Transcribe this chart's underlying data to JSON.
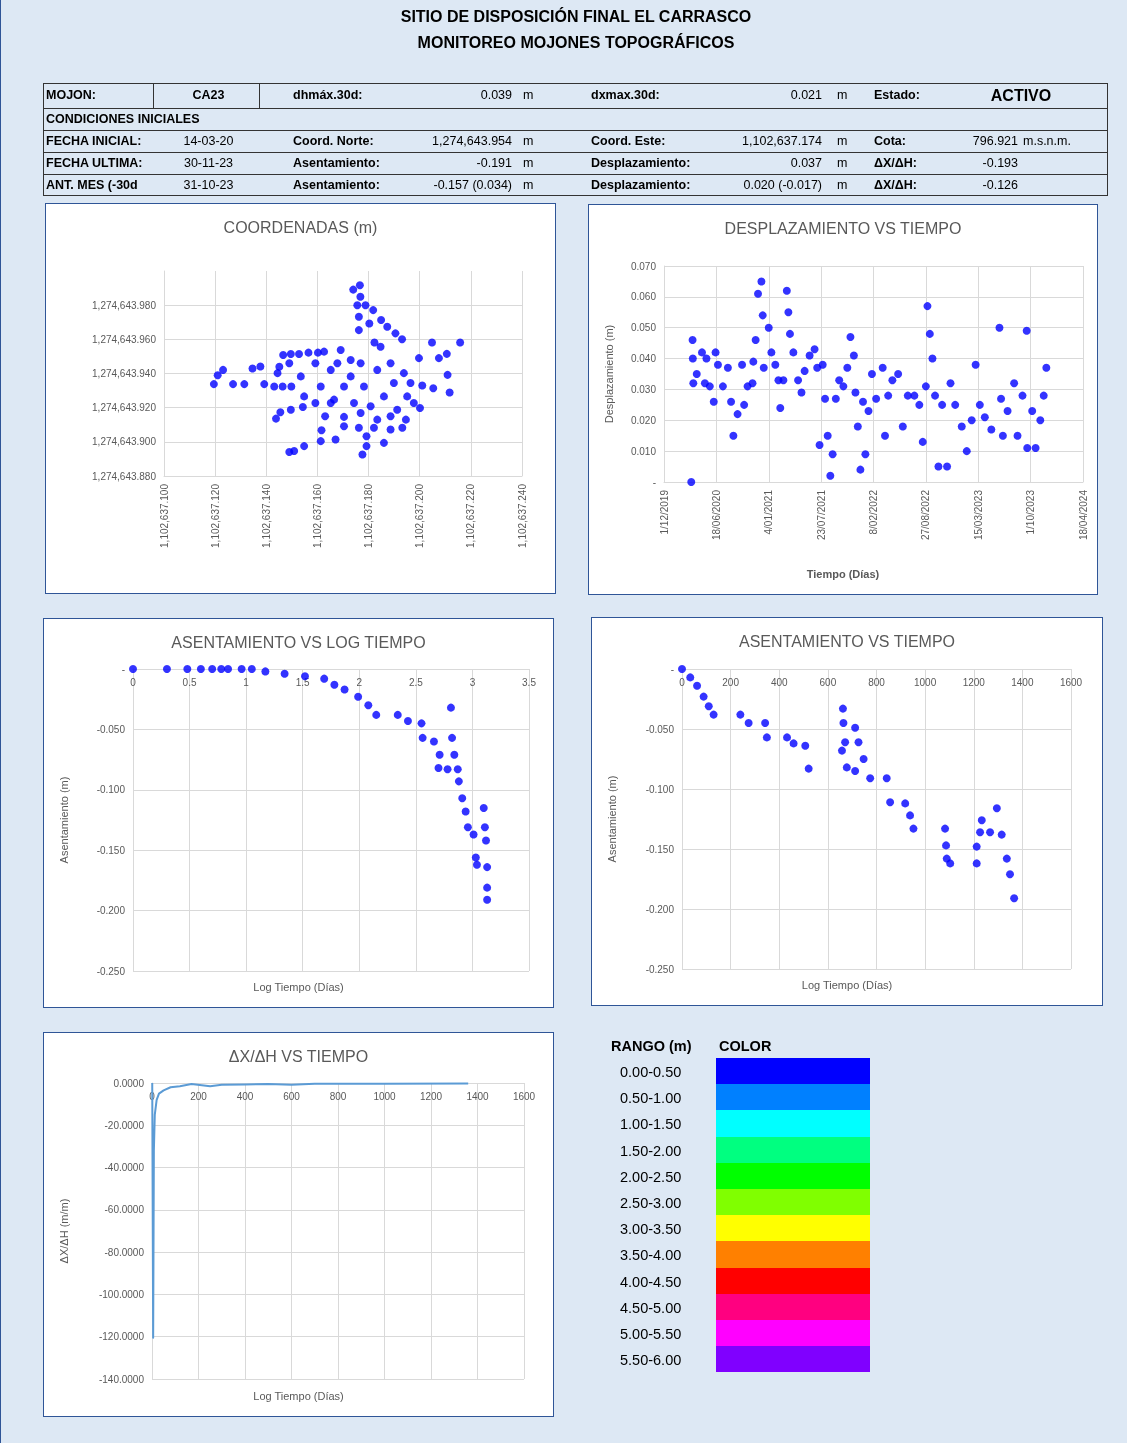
{
  "chart_data": [
    {
      "type": "other",
      "title": "SITIO DE DISPOSICIÓN FINAL EL CARRASCO",
      "subtitle": "MONITOREO MOJONES TOPOGRÁFICOS",
      "annotations": [
        "MOJON:",
        "CA23",
        "dhmáx.30d:",
        "0.039",
        "m",
        "dxmax.30d:",
        "0.021",
        "m",
        "Estado:",
        "ACTIVO",
        "CONDICIONES INICIALES",
        "FECHA INICIAL:",
        "14-03-20",
        "Coord. Norte:",
        "1,274,643.954",
        "m",
        "Coord. Este:",
        "1,102,637.174",
        "m",
        "Cota:",
        "796.921",
        "m.s.n.m.",
        "FECHA ULTIMA:",
        "30-11-23",
        "Asentamiento:",
        "-0.191",
        "m",
        "Desplazamiento:",
        "0.037",
        "m",
        "ΔX/ΔH:",
        "-0.193",
        "ANT. MES (-30d",
        "31-10-23",
        "Asentamiento:",
        "-0.157 (0.034)",
        "m",
        "Desplazamiento:",
        "0.020 (-0.017)",
        "m",
        "ΔX/ΔH:",
        "-0.126"
      ]
    },
    {
      "type": "scatter",
      "title": "COORDENADAS (m)",
      "color": "#0000ff",
      "marker": "circle",
      "grid": true,
      "xlim": [
        1102637.1,
        1102637.24
      ],
      "xticks": [
        {
          "value": 1102637.1,
          "label": "1,102,637.100"
        },
        {
          "value": 1102637.12,
          "label": "1,102,637.120"
        },
        {
          "value": 1102637.14,
          "label": "1,102,637.140"
        },
        {
          "value": 1102637.16,
          "label": "1,102,637.160"
        },
        {
          "value": 1102637.18,
          "label": "1,102,637.180"
        },
        {
          "value": 1102637.2,
          "label": "1,102,637.200"
        },
        {
          "value": 1102637.22,
          "label": "1,102,637.220"
        },
        {
          "value": 1102637.24,
          "label": "1,102,637.240"
        }
      ],
      "ylim": [
        1274643.88,
        1274644.0
      ],
      "yticks": [
        {
          "value": 1274643.88,
          "label": "1,274,643.880"
        },
        {
          "value": 1274643.9,
          "label": "1,274,643.900"
        },
        {
          "value": 1274643.92,
          "label": "1,274,643.920"
        },
        {
          "value": 1274643.94,
          "label": "1,274,643.940"
        },
        {
          "value": 1274643.96,
          "label": "1,274,643.960"
        },
        {
          "value": 1274643.98,
          "label": "1,274,643.980"
        }
      ],
      "x": [
        1102637.1195,
        1102637.121,
        1102637.1231,
        1102637.127,
        1102637.1314,
        1102637.1346,
        1102637.1377,
        1102637.1392,
        1102637.1431,
        1102637.1464,
        1102637.1438,
        1102637.1455,
        1102637.1496,
        1102637.1543,
        1102637.149,
        1102637.1509,
        1102637.1548,
        1102637.1613,
        1102637.1616,
        1102637.1671,
        1102637.163,
        1102637.1704,
        1102637.1704,
        1102637.1762,
        1102637.1776,
        1102637.1792,
        1102637.1792,
        1102637.186,
        1102637.1821,
        1102637.1886,
        1102637.1932,
        1102637.1766,
        1102637.174,
        1102637.1768,
        1102637.1756,
        1102637.1788,
        1102637.1818,
        1102637.1762,
        1102637.1803,
        1102637.1762,
        1102637.1849,
        1102637.1873,
        1102637.1905,
        1102637.1931,
        1102637.1823,
        1102637.2158,
        1102637.2048,
        1102637.2106,
        1102637.2075,
        1102637.1997,
        1102637.2109,
        1102637.2117,
        1102637.2053,
        1102637.201,
        1102637.2001,
        1102637.1946,
        1102637.1466,
        1102637.1496,
        1102637.1528,
        1102637.1565,
        1102637.1602,
        1102637.1626,
        1102637.1451,
        1102637.149,
        1102637.1444,
        1102637.1498,
        1102637.1535,
        1102637.1592,
        1102637.1592,
        1102637.1613,
        1102637.1652,
        1102637.1652,
        1102637.1678,
        1102637.1691,
        1102637.1704,
        1102637.173,
        1102637.173,
        1102637.1743,
        1102637.1769,
        1102637.1782,
        1102637.1808,
        1102637.1834,
        1102637.1847,
        1102637.186,
        1102637.1886,
        1102637.1899,
        1102637.1912,
        1102637.1938,
        1102637.1951,
        1102637.1964,
        1102637.1977,
        1102637.1886,
        1102637.1834,
        1102637.1769,
        1102637.1665,
        1102637.1548
      ],
      "values": [
        1274643.9338,
        1274643.939,
        1274643.9421,
        1274643.9338,
        1274643.9338,
        1274643.9429,
        1274643.9441,
        1274643.9338,
        1274643.9324,
        1274643.9324,
        1274643.9136,
        1274643.9173,
        1274643.9188,
        1274643.9204,
        1274643.894,
        1274643.8946,
        1274643.8975,
        1274643.9004,
        1274643.9068,
        1274643.9014,
        1274643.915,
        1274643.9091,
        1274643.9146,
        1274643.9082,
        1274643.8926,
        1274643.8975,
        1274643.9033,
        1274643.8994,
        1274643.9082,
        1274643.9072,
        1274643.9082,
        1274643.9917,
        1274643.9891,
        1274643.9849,
        1274643.98,
        1274643.98,
        1274643.9771,
        1274643.9732,
        1274643.9693,
        1274643.9654,
        1274643.9713,
        1274643.9674,
        1274643.9635,
        1274643.96,
        1274643.9581,
        1274643.9581,
        1274643.9581,
        1274643.9515,
        1274643.949,
        1274643.949,
        1274643.9392,
        1274643.9289,
        1274643.9314,
        1274643.933,
        1274643.9198,
        1274643.913,
        1274643.9508,
        1274643.9514,
        1274643.9514,
        1274643.9522,
        1274643.9522,
        1274643.9528,
        1274643.944,
        1274643.946,
        1274643.9402,
        1274643.9324,
        1274643.9383,
        1274643.946,
        1274643.9227,
        1274643.9324,
        1274643.9421,
        1274643.9227,
        1274643.946,
        1274643.9538,
        1274643.9324,
        1274643.9479,
        1274643.9383,
        1274643.9227,
        1274643.946,
        1274643.9324,
        1274643.9208,
        1274643.9421,
        1274643.9557,
        1274643.9266,
        1274643.946,
        1274643.9344,
        1274643.9188,
        1274643.9402,
        1274643.9266,
        1274643.9344,
        1274643.9227,
        1274643.915,
        1274643.913,
        1274643.9169,
        1274643.9247,
        1274643.9266
      ]
    },
    {
      "type": "scatter",
      "title": "DESPLAZAMIENTO VS TIEMPO",
      "xlabel": "Tiempo (Días)",
      "ylabel": "Desplazamiento (m)",
      "color": "#0000ff",
      "marker": "circle",
      "grid": true,
      "xlim": [
        "2019-12-01",
        "2024-04-18"
      ],
      "xticks": [
        {
          "value": "2019-12-01",
          "label": "1/12/2019"
        },
        {
          "value": "2020-06-18",
          "label": "18/06/2020"
        },
        {
          "value": "2021-01-04",
          "label": "4/01/2021"
        },
        {
          "value": "2021-07-23",
          "label": "23/07/2021"
        },
        {
          "value": "2022-02-08",
          "label": "8/02/2022"
        },
        {
          "value": "2022-08-27",
          "label": "27/08/2022"
        },
        {
          "value": "2023-03-15",
          "label": "15/03/2023"
        },
        {
          "value": "2023-10-01",
          "label": "1/10/2023"
        },
        {
          "value": "2024-04-18",
          "label": "18/04/2024"
        }
      ],
      "ylim": [
        0,
        0.07
      ],
      "yticks": [
        {
          "value": 0,
          "label": "-"
        },
        {
          "value": 0.01,
          "label": "0.010"
        },
        {
          "value": 0.02,
          "label": "0.020"
        },
        {
          "value": 0.03,
          "label": "0.030"
        },
        {
          "value": 0.04,
          "label": "0.040"
        },
        {
          "value": 0.05,
          "label": "0.050"
        },
        {
          "value": 0.06,
          "label": "0.060"
        },
        {
          "value": 0.07,
          "label": "0.070"
        }
      ],
      "x": [
        "2020-03-14",
        "2020-03-19",
        "2020-03-20",
        "2020-03-22",
        "2020-04-04",
        "2020-04-24",
        "2020-05-05",
        "2020-05-11",
        "2020-05-24",
        "2020-06-08",
        "2020-06-15",
        "2020-06-24",
        "2020-07-13",
        "2020-08-01",
        "2020-08-13",
        "2020-08-22",
        "2020-09-07",
        "2020-09-24",
        "2020-10-02",
        "2020-10-15",
        "2020-11-03",
        "2020-11-06",
        "2020-11-15",
        "2020-11-24",
        "2020-12-07",
        "2020-12-12",
        "2020-12-16",
        "2021-01-04",
        "2021-01-14",
        "2021-01-29",
        "2021-02-10",
        "2021-02-17",
        "2021-03-01",
        "2021-03-14",
        "2021-03-20",
        "2021-03-26",
        "2021-04-08",
        "2021-04-26",
        "2021-05-09",
        "2021-05-21",
        "2021-06-09",
        "2021-06-28",
        "2021-07-08",
        "2021-07-17",
        "2021-07-29",
        "2021-08-07",
        "2021-08-17",
        "2021-08-27",
        "2021-09-05",
        "2021-09-17",
        "2021-09-30",
        "2021-10-16",
        "2021-10-31",
        "2021-11-12",
        "2021-11-25",
        "2021-12-01",
        "2021-12-10",
        "2021-12-20",
        "2021-12-30",
        "2022-01-08",
        "2022-01-20",
        "2022-02-02",
        "2022-02-18",
        "2022-03-15",
        "2022-03-24",
        "2022-04-05",
        "2022-04-21",
        "2022-05-13",
        "2022-05-31",
        "2022-06-19",
        "2022-07-14",
        "2022-08-02",
        "2022-08-15",
        "2022-08-27",
        "2022-09-02",
        "2022-09-11",
        "2022-09-21",
        "2022-10-01",
        "2022-10-14",
        "2022-10-28",
        "2022-11-16",
        "2022-11-29",
        "2022-12-17",
        "2023-01-11",
        "2023-01-30",
        "2023-02-18",
        "2023-03-05",
        "2023-03-21",
        "2023-04-09",
        "2023-05-04",
        "2023-06-04",
        "2023-06-10",
        "2023-06-17",
        "2023-07-05",
        "2023-07-30",
        "2023-08-12",
        "2023-08-31",
        "2023-09-16",
        "2023-09-18",
        "2023-10-07",
        "2023-10-20",
        "2023-11-07",
        "2023-11-20",
        "2023-11-30"
      ],
      "values": [
        0,
        0.046,
        0.04,
        0.032,
        0.035,
        0.042,
        0.032,
        0.04,
        0.031,
        0.026,
        0.042,
        0.038,
        0.031,
        0.037,
        0.026,
        0.015,
        0.022,
        0.038,
        0.025,
        0.031,
        0.032,
        0.039,
        0.046,
        0.061,
        0.065,
        0.054,
        0.037,
        0.05,
        0.042,
        0.038,
        0.033,
        0.024,
        0.033,
        0.062,
        0.055,
        0.048,
        0.042,
        0.033,
        0.029,
        0.036,
        0.041,
        0.043,
        0.037,
        0.012,
        0.038,
        0.027,
        0.015,
        0.002,
        0.009,
        0.027,
        0.033,
        0.031,
        0.037,
        0.047,
        0.041,
        0.029,
        0.018,
        0.004,
        0.026,
        0.009,
        0.023,
        0.035,
        0.027,
        0.037,
        0.015,
        0.028,
        0.033,
        0.035,
        0.018,
        0.028,
        0.028,
        0.025,
        0.013,
        0.031,
        0.057,
        0.048,
        0.04,
        0.028,
        0.005,
        0.025,
        0.005,
        0.032,
        0.025,
        0.018,
        0.01,
        0.02,
        0.038,
        0.025,
        0.021,
        0.017,
        0.05,
        0.027,
        0.015,
        0.023,
        0.032,
        0.015,
        0.028,
        0.049,
        0.011,
        0.023,
        0.011,
        0.02,
        0.028,
        0.037
      ]
    },
    {
      "type": "scatter",
      "title": "ASENTAMIENTO VS LOG TIEMPO",
      "xlabel": "Log Tiempo (Días)",
      "ylabel": "Asentamiento (m)",
      "color": "#0000ff",
      "marker": "circle",
      "grid": true,
      "xlim": [
        0,
        3.5
      ],
      "xticks": [
        0,
        0.5,
        1,
        1.5,
        2,
        2.5,
        3,
        3.5
      ],
      "ylim": [
        -0.25,
        0
      ],
      "yticks": [
        {
          "value": -0.25,
          "label": "-0.250"
        },
        {
          "value": -0.2,
          "label": "-0.200"
        },
        {
          "value": -0.15,
          "label": "-0.150"
        },
        {
          "value": -0.1,
          "label": "-0.100"
        },
        {
          "value": -0.05,
          "label": "-0.050"
        },
        {
          "value": 0,
          "label": "-"
        }
      ],
      "x": [
        0,
        0.3,
        0.48,
        0.6,
        0.7,
        0.78,
        0.84,
        0.96,
        1.05,
        1.17,
        1.34,
        1.52,
        1.69,
        1.78,
        1.87,
        1.99,
        2.08,
        2.15,
        2.34,
        2.43,
        2.55,
        2.56,
        2.66,
        2.71,
        2.7,
        2.78,
        2.81,
        2.82,
        2.84,
        2.87,
        2.88,
        2.91,
        2.94,
        2.96,
        3.01,
        3.03,
        3.04,
        3.1,
        3.11,
        3.12,
        3.13,
        3.13,
        3.13
      ],
      "values": [
        0,
        0,
        0,
        0,
        0,
        0,
        0,
        0,
        0,
        -0.002,
        -0.004,
        -0.006,
        -0.008,
        -0.013,
        -0.017,
        -0.023,
        -0.03,
        -0.038,
        -0.038,
        -0.043,
        -0.045,
        -0.057,
        -0.06,
        -0.071,
        -0.082,
        -0.083,
        -0.032,
        -0.057,
        -0.071,
        -0.083,
        -0.093,
        -0.107,
        -0.118,
        -0.131,
        -0.137,
        -0.156,
        -0.162,
        -0.115,
        -0.131,
        -0.142,
        -0.164,
        -0.181,
        -0.191
      ]
    },
    {
      "type": "scatter",
      "title": "ASENTAMIENTO VS TIEMPO",
      "xlabel": "Log Tiempo (Días)",
      "ylabel": "Asentamiento (m)",
      "color": "#0000ff",
      "marker": "circle",
      "grid": true,
      "xlim": [
        0,
        1600
      ],
      "xticks": [
        0,
        200,
        400,
        600,
        800,
        1000,
        1200,
        1400,
        1600
      ],
      "ylim": [
        -0.25,
        0
      ],
      "yticks": [
        {
          "value": -0.25,
          "label": "-0.250"
        },
        {
          "value": -0.2,
          "label": "-0.200"
        },
        {
          "value": -0.15,
          "label": "-0.150"
        },
        {
          "value": -0.1,
          "label": "-0.100"
        },
        {
          "value": -0.05,
          "label": "-0.050"
        },
        {
          "value": 0,
          "label": "-"
        }
      ],
      "x": [
        0,
        34,
        62,
        89,
        110,
        130,
        240,
        274,
        342,
        349,
        432,
        459,
        507,
        521,
        678,
        712,
        662,
        664,
        671,
        658,
        712,
        726,
        747,
        774,
        842,
        856,
        918,
        938,
        952,
        1082,
        1086,
        1089,
        1103,
        1212,
        1212,
        1226,
        1233,
        1267,
        1295,
        1315,
        1336,
        1349,
        1366
      ],
      "values": [
        0,
        -0.007,
        -0.014,
        -0.023,
        -0.031,
        -0.038,
        -0.038,
        -0.045,
        -0.045,
        -0.057,
        -0.057,
        -0.062,
        -0.064,
        -0.083,
        -0.082,
        -0.085,
        -0.033,
        -0.045,
        -0.061,
        -0.068,
        -0.049,
        -0.061,
        -0.075,
        -0.091,
        -0.091,
        -0.111,
        -0.112,
        -0.122,
        -0.133,
        -0.133,
        -0.147,
        -0.158,
        -0.162,
        -0.162,
        -0.148,
        -0.136,
        -0.126,
        -0.136,
        -0.116,
        -0.138,
        -0.158,
        -0.171,
        -0.191
      ]
    },
    {
      "type": "line",
      "title": "ΔX/ΔH VS TIEMPO",
      "xlabel": "Log Tiempo (Días)",
      "ylabel": "ΔX/ΔH (m/m)",
      "color": "#5b9bd5",
      "marker": "none",
      "line_style": "solid",
      "grid": true,
      "xlim": [
        0,
        1600
      ],
      "xticks": [
        0,
        200,
        400,
        600,
        800,
        1000,
        1200,
        1400,
        1600
      ],
      "ylim": [
        -140,
        0
      ],
      "yticks": [
        {
          "value": -140,
          "label": "-140.0000"
        },
        {
          "value": -120,
          "label": "-120.0000"
        },
        {
          "value": -100,
          "label": "-100.0000"
        },
        {
          "value": -80,
          "label": "-80.0000"
        },
        {
          "value": -60,
          "label": "-60.0000"
        },
        {
          "value": -40,
          "label": "-40.0000"
        },
        {
          "value": -20,
          "label": "-20.0000"
        },
        {
          "value": 0,
          "label": "0.0000"
        }
      ],
      "x": [
        1,
        5,
        8,
        12,
        20,
        30,
        50,
        80,
        120,
        170,
        250,
        300,
        400,
        500,
        600,
        700,
        1000,
        1360
      ],
      "values": [
        0,
        -120.5,
        -32,
        -15,
        -8,
        -5,
        -3.5,
        -2,
        -1.5,
        -0.5,
        -1.5,
        -0.8,
        -0.7,
        -0.5,
        -0.8,
        -0.4,
        -0.4,
        -0.2
      ]
    },
    {
      "type": "other",
      "annotations": [
        "RANGO (m)",
        "COLOR"
      ],
      "categories": [
        "0.00-0.50",
        "0.50-1.00",
        "1.00-1.50",
        "1.50-2.00",
        "2.00-2.50",
        "2.50-3.00",
        "3.00-3.50",
        "3.50-4.00",
        "4.00-4.50",
        "4.50-5.00",
        "5.00-5.50",
        "5.50-6.00"
      ],
      "colors": [
        "#0000ff",
        "#0080ff",
        "#00ffff",
        "#00ff80",
        "#00ff00",
        "#80ff00",
        "#ffff00",
        "#ff8000",
        "#ff0000",
        "#ff0080",
        "#ff00ff",
        "#8000ff"
      ]
    }
  ]
}
